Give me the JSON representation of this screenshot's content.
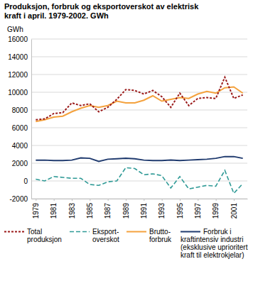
{
  "chart_data": {
    "type": "line",
    "title": "Produksjon, forbruk og eksportoverskot av elektrisk kraft i april. 1979-2002. GWh",
    "y_label": "GWh",
    "x": [
      1979,
      1980,
      1981,
      1982,
      1983,
      1984,
      1985,
      1986,
      1987,
      1988,
      1989,
      1990,
      1991,
      1992,
      1993,
      1994,
      1995,
      1996,
      1997,
      1998,
      1999,
      2000,
      2001,
      2002
    ],
    "xlim": [
      1978.5,
      2002.5
    ],
    "xticks": [
      1979,
      1981,
      1983,
      1985,
      1987,
      1989,
      1991,
      1993,
      1995,
      1997,
      1999,
      2001
    ],
    "ylim": [
      -2000,
      16000
    ],
    "yticks": [
      -2000,
      0,
      2000,
      4000,
      6000,
      8000,
      10000,
      12000,
      14000,
      16000
    ],
    "grid": true,
    "legend": "bottom",
    "series": [
      {
        "name": "Total produksjon",
        "color": "#9b1b1b",
        "line_style": "dotted",
        "values": [
          6900,
          7000,
          7600,
          7700,
          8800,
          8500,
          8700,
          7800,
          8300,
          9200,
          10300,
          10200,
          9800,
          10200,
          9500,
          8300,
          9900,
          8500,
          9300,
          9400,
          9300,
          11700,
          9300,
          9700
        ]
      },
      {
        "name": "Eksport-overskot",
        "color": "#2f9a96",
        "line_style": "dashed",
        "values": [
          200,
          0,
          500,
          400,
          300,
          300,
          -400,
          -500,
          -100,
          0,
          1500,
          1400,
          700,
          800,
          600,
          -800,
          500,
          -900,
          -700,
          -500,
          -600,
          1200,
          -1400,
          -300
        ]
      },
      {
        "name": "Brutto-forbruk",
        "color": "#f4a23e",
        "line_style": "solid",
        "values": [
          6700,
          6900,
          7200,
          7300,
          7800,
          8200,
          8500,
          8300,
          8500,
          9000,
          8800,
          8800,
          9100,
          9600,
          9000,
          9200,
          9400,
          9300,
          9800,
          10100,
          9900,
          10500,
          10600,
          9900
        ]
      },
      {
        "name": "Forbruk i kraftintensiv industri (eksklusive uprioritert kraft til elektrokjelar)",
        "color": "#1f3a6e",
        "line_style": "solid",
        "values": [
          2350,
          2350,
          2300,
          2300,
          2350,
          2600,
          2550,
          2200,
          2450,
          2500,
          2550,
          2500,
          2350,
          2300,
          2300,
          2350,
          2300,
          2350,
          2400,
          2450,
          2550,
          2750,
          2750,
          2550
        ]
      }
    ]
  }
}
